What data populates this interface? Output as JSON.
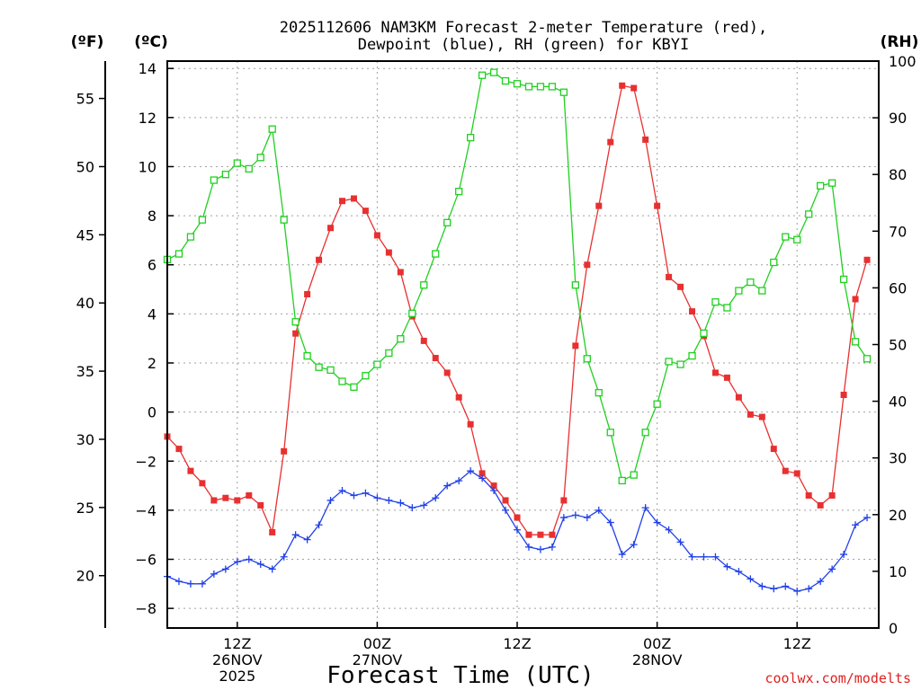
{
  "chart_data": {
    "type": "line",
    "title_lines": [
      "2025112606 NAM3KM Forecast 2-meter Temperature (red),",
      "Dewpoint (blue), RH (green) for KBYI"
    ],
    "xlabel": "Forecast Time (UTC)",
    "credit": "coolwx.com/modelts",
    "units": {
      "fahrenheit": "(ºF)",
      "celsius": "(ºC)",
      "rh": "(RH)"
    },
    "x_range_hours": [
      0,
      61
    ],
    "y_celsius_range": [
      -8.8,
      14.3
    ],
    "y_rh_range": [
      0,
      100
    ],
    "celsius_ticks": [
      "14",
      "12",
      "10",
      "8",
      "6",
      "4",
      "2",
      "0",
      "−2",
      "−4",
      "−6",
      "−8"
    ],
    "fahrenheit_ticks": [
      "55",
      "50",
      "45",
      "40",
      "35",
      "30",
      "25",
      "20"
    ],
    "rh_ticks": [
      "100",
      "90",
      "80",
      "70",
      "60",
      "50",
      "40",
      "30",
      "20",
      "10",
      "0"
    ],
    "x_ticks": [
      {
        "hour": 6,
        "lines": [
          "12Z",
          "26NOV",
          "2025"
        ]
      },
      {
        "hour": 18,
        "lines": [
          "00Z",
          "27NOV"
        ]
      },
      {
        "hour": 30,
        "lines": [
          "12Z"
        ]
      },
      {
        "hour": 42,
        "lines": [
          "00Z",
          "28NOV"
        ]
      },
      {
        "hour": 54,
        "lines": [
          "12Z"
        ]
      }
    ],
    "x_grid_hours": [
      6,
      18,
      30,
      42,
      54
    ],
    "series": [
      {
        "name": "2-meter Temperature",
        "axis": "celsius",
        "color": "#e83030",
        "marker": "filled-square",
        "values": [
          -1.0,
          -1.5,
          -2.4,
          -2.9,
          -3.6,
          -3.5,
          -3.6,
          -3.4,
          -3.8,
          -4.9,
          -1.6,
          3.2,
          4.8,
          6.2,
          7.5,
          8.6,
          8.7,
          8.2,
          7.2,
          6.5,
          5.7,
          3.9,
          2.9,
          2.2,
          1.6,
          0.6,
          -0.5,
          -2.5,
          -3.0,
          -3.6,
          -4.3,
          -5.0,
          -5.0,
          -5.0,
          -3.6,
          2.7,
          6.0,
          8.4,
          11.0,
          13.3,
          13.2,
          11.1,
          8.4,
          5.5,
          5.1,
          4.1,
          3.1,
          1.6,
          1.4,
          0.6,
          -0.1,
          -0.2,
          -1.5,
          -2.4,
          -2.5,
          -3.4,
          -3.8,
          -3.4,
          0.7,
          4.6,
          6.2
        ]
      },
      {
        "name": "Dewpoint",
        "axis": "celsius",
        "color": "#2040e8",
        "marker": "plus",
        "values": [
          -6.7,
          -6.9,
          -7.0,
          -7.0,
          -6.6,
          -6.4,
          -6.1,
          -6.0,
          -6.2,
          -6.4,
          -5.9,
          -5.0,
          -5.2,
          -4.6,
          -3.6,
          -3.2,
          -3.4,
          -3.3,
          -3.5,
          -3.6,
          -3.7,
          -3.9,
          -3.8,
          -3.5,
          -3.0,
          -2.8,
          -2.4,
          -2.7,
          -3.2,
          -4.0,
          -4.8,
          -5.5,
          -5.6,
          -5.5,
          -4.3,
          -4.2,
          -4.3,
          -4.0,
          -4.5,
          -5.8,
          -5.4,
          -3.9,
          -4.5,
          -4.8,
          -5.3,
          -5.9,
          -5.9,
          -5.9,
          -6.3,
          -6.5,
          -6.8,
          -7.1,
          -7.2,
          -7.1,
          -7.3,
          -7.2,
          -6.9,
          -6.4,
          -5.8,
          -4.6,
          -4.3
        ]
      },
      {
        "name": "RH",
        "axis": "rh",
        "color": "#20d020",
        "marker": "open-square",
        "values": [
          65,
          66,
          69,
          72,
          79,
          80,
          82,
          81,
          83,
          88,
          72,
          54,
          48,
          46,
          45.5,
          43.5,
          42.5,
          44.5,
          46.5,
          48.5,
          51,
          55.5,
          60.5,
          66,
          71.5,
          77,
          86.5,
          97.5,
          98,
          96.5,
          96,
          95.5,
          95.5,
          95.5,
          94.5,
          60.5,
          47.5,
          41.5,
          34.5,
          26,
          27,
          34.5,
          39.5,
          47,
          46.5,
          48,
          52,
          57.5,
          56.5,
          59.5,
          61,
          59.5,
          64.5,
          69,
          68.5,
          73,
          78,
          78.5,
          61.5,
          50.5,
          47.5
        ]
      }
    ]
  }
}
